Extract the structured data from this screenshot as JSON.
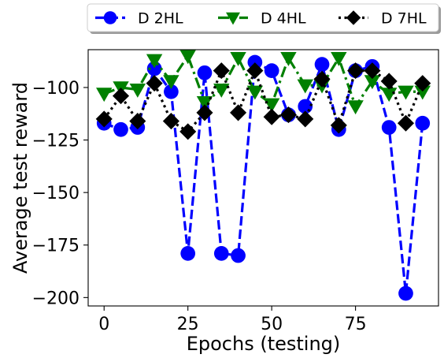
{
  "chart_data": {
    "type": "line",
    "xlabel": "Epochs (testing)",
    "ylabel": "Average test reward",
    "xlim": [
      -4.75,
      99.75
    ],
    "ylim": [
      -204,
      -82
    ],
    "xticks": [
      0,
      25,
      50,
      75
    ],
    "yticks": [
      -100,
      -125,
      -150,
      -175,
      -200
    ],
    "grid": false,
    "legend_position": "above plot, horizontal",
    "series": [
      {
        "name": "D 2HL",
        "color": "#0000ff",
        "linestyle": "dashed",
        "marker": "circle",
        "x": [
          0,
          5,
          10,
          15,
          20,
          25,
          30,
          35,
          40,
          45,
          50,
          55,
          60,
          65,
          70,
          75,
          80,
          85,
          90,
          95
        ],
        "y": [
          -117,
          -120,
          -119,
          -91,
          -102,
          -179,
          -93,
          -179,
          -180,
          -88,
          -92,
          -113,
          -109,
          -89,
          -120,
          -92,
          -90,
          -119,
          -198,
          -117
        ]
      },
      {
        "name": "D 4HL",
        "color": "#008000",
        "linestyle": "dashdot",
        "marker": "triangle-down",
        "x": [
          0,
          5,
          10,
          15,
          20,
          25,
          30,
          35,
          40,
          45,
          50,
          55,
          60,
          65,
          70,
          75,
          80,
          85,
          90,
          95
        ],
        "y": [
          -103,
          -100,
          -101,
          -87,
          -97,
          -85,
          -107,
          -101,
          -86,
          -102,
          -108,
          -86,
          -99,
          -99,
          -86,
          -109,
          -97,
          -103,
          -102,
          -102
        ]
      },
      {
        "name": "D 7HL",
        "color": "#000000",
        "linestyle": "dotted",
        "marker": "diamond",
        "x": [
          0,
          5,
          10,
          15,
          20,
          25,
          30,
          35,
          40,
          45,
          50,
          55,
          60,
          65,
          70,
          75,
          80,
          85,
          90,
          95
        ],
        "y": [
          -115,
          -104,
          -116,
          -98,
          -116,
          -121,
          -112,
          -92,
          -112,
          -92,
          -114,
          -113,
          -115,
          -96,
          -118,
          -92,
          -92,
          -97,
          -117,
          -98
        ]
      }
    ]
  }
}
